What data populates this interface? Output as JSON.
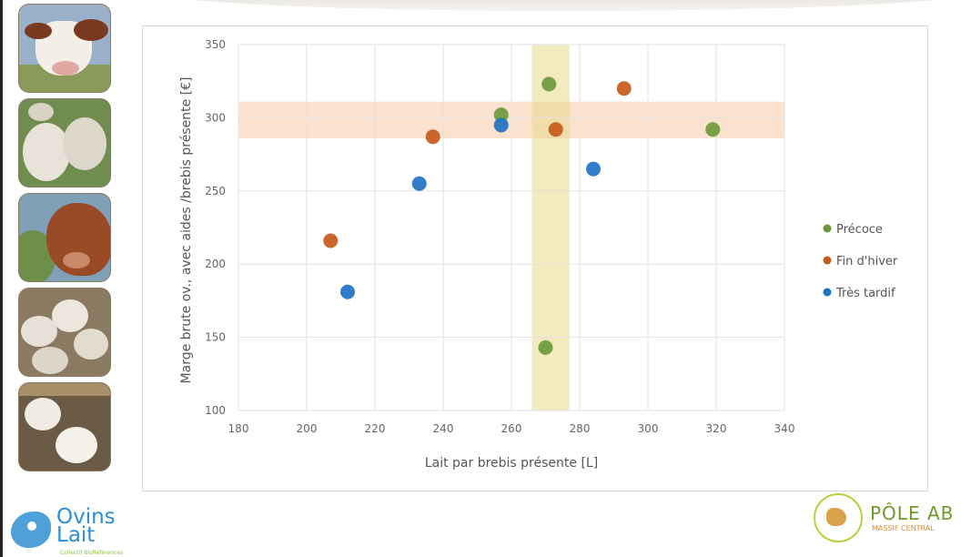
{
  "chart_data": {
    "type": "scatter",
    "xlabel": "Lait par brebis présente [L]",
    "ylabel": "Marge brute ov., avec aides /brebis présente [€]",
    "xlim": [
      180,
      340
    ],
    "ylim": [
      100,
      350
    ],
    "x_ticks": [
      180,
      200,
      220,
      240,
      260,
      280,
      300,
      320,
      340
    ],
    "y_ticks": [
      100,
      150,
      200,
      250,
      300,
      350
    ],
    "grid": true,
    "legend_position": "right",
    "highlight_bands": [
      {
        "axis": "y",
        "from": 286,
        "to": 311,
        "color": "#f6caa6"
      },
      {
        "axis": "x",
        "from": 266,
        "to": 277,
        "color": "#e9d98a"
      }
    ],
    "series": [
      {
        "name": "Précoce",
        "color": "#6b9a3c",
        "points": [
          {
            "x": 257,
            "y": 302
          },
          {
            "x": 271,
            "y": 323
          },
          {
            "x": 319,
            "y": 292
          },
          {
            "x": 270,
            "y": 143
          }
        ]
      },
      {
        "name": "Fin d'hiver",
        "color": "#c55a1c",
        "points": [
          {
            "x": 207,
            "y": 216
          },
          {
            "x": 237,
            "y": 287
          },
          {
            "x": 273,
            "y": 292
          },
          {
            "x": 293,
            "y": 320
          }
        ]
      },
      {
        "name": "Très tardif",
        "color": "#1f72c4",
        "points": [
          {
            "x": 212,
            "y": 181
          },
          {
            "x": 233,
            "y": 255
          },
          {
            "x": 257,
            "y": 295
          },
          {
            "x": 284,
            "y": 265
          }
        ]
      }
    ]
  },
  "logos": {
    "ovins_name": "Ovins Lait",
    "ovins_sub": "Collectif BioRéférences",
    "pole_title": "PÔLE AB",
    "pole_subtitle": "MASSIF CENTRAL"
  },
  "photos": [
    {
      "subject": "cow-icon"
    },
    {
      "subject": "sheep-icon"
    },
    {
      "subject": "cow-icon"
    },
    {
      "subject": "sheep-icon"
    },
    {
      "subject": "goat-icon"
    }
  ]
}
